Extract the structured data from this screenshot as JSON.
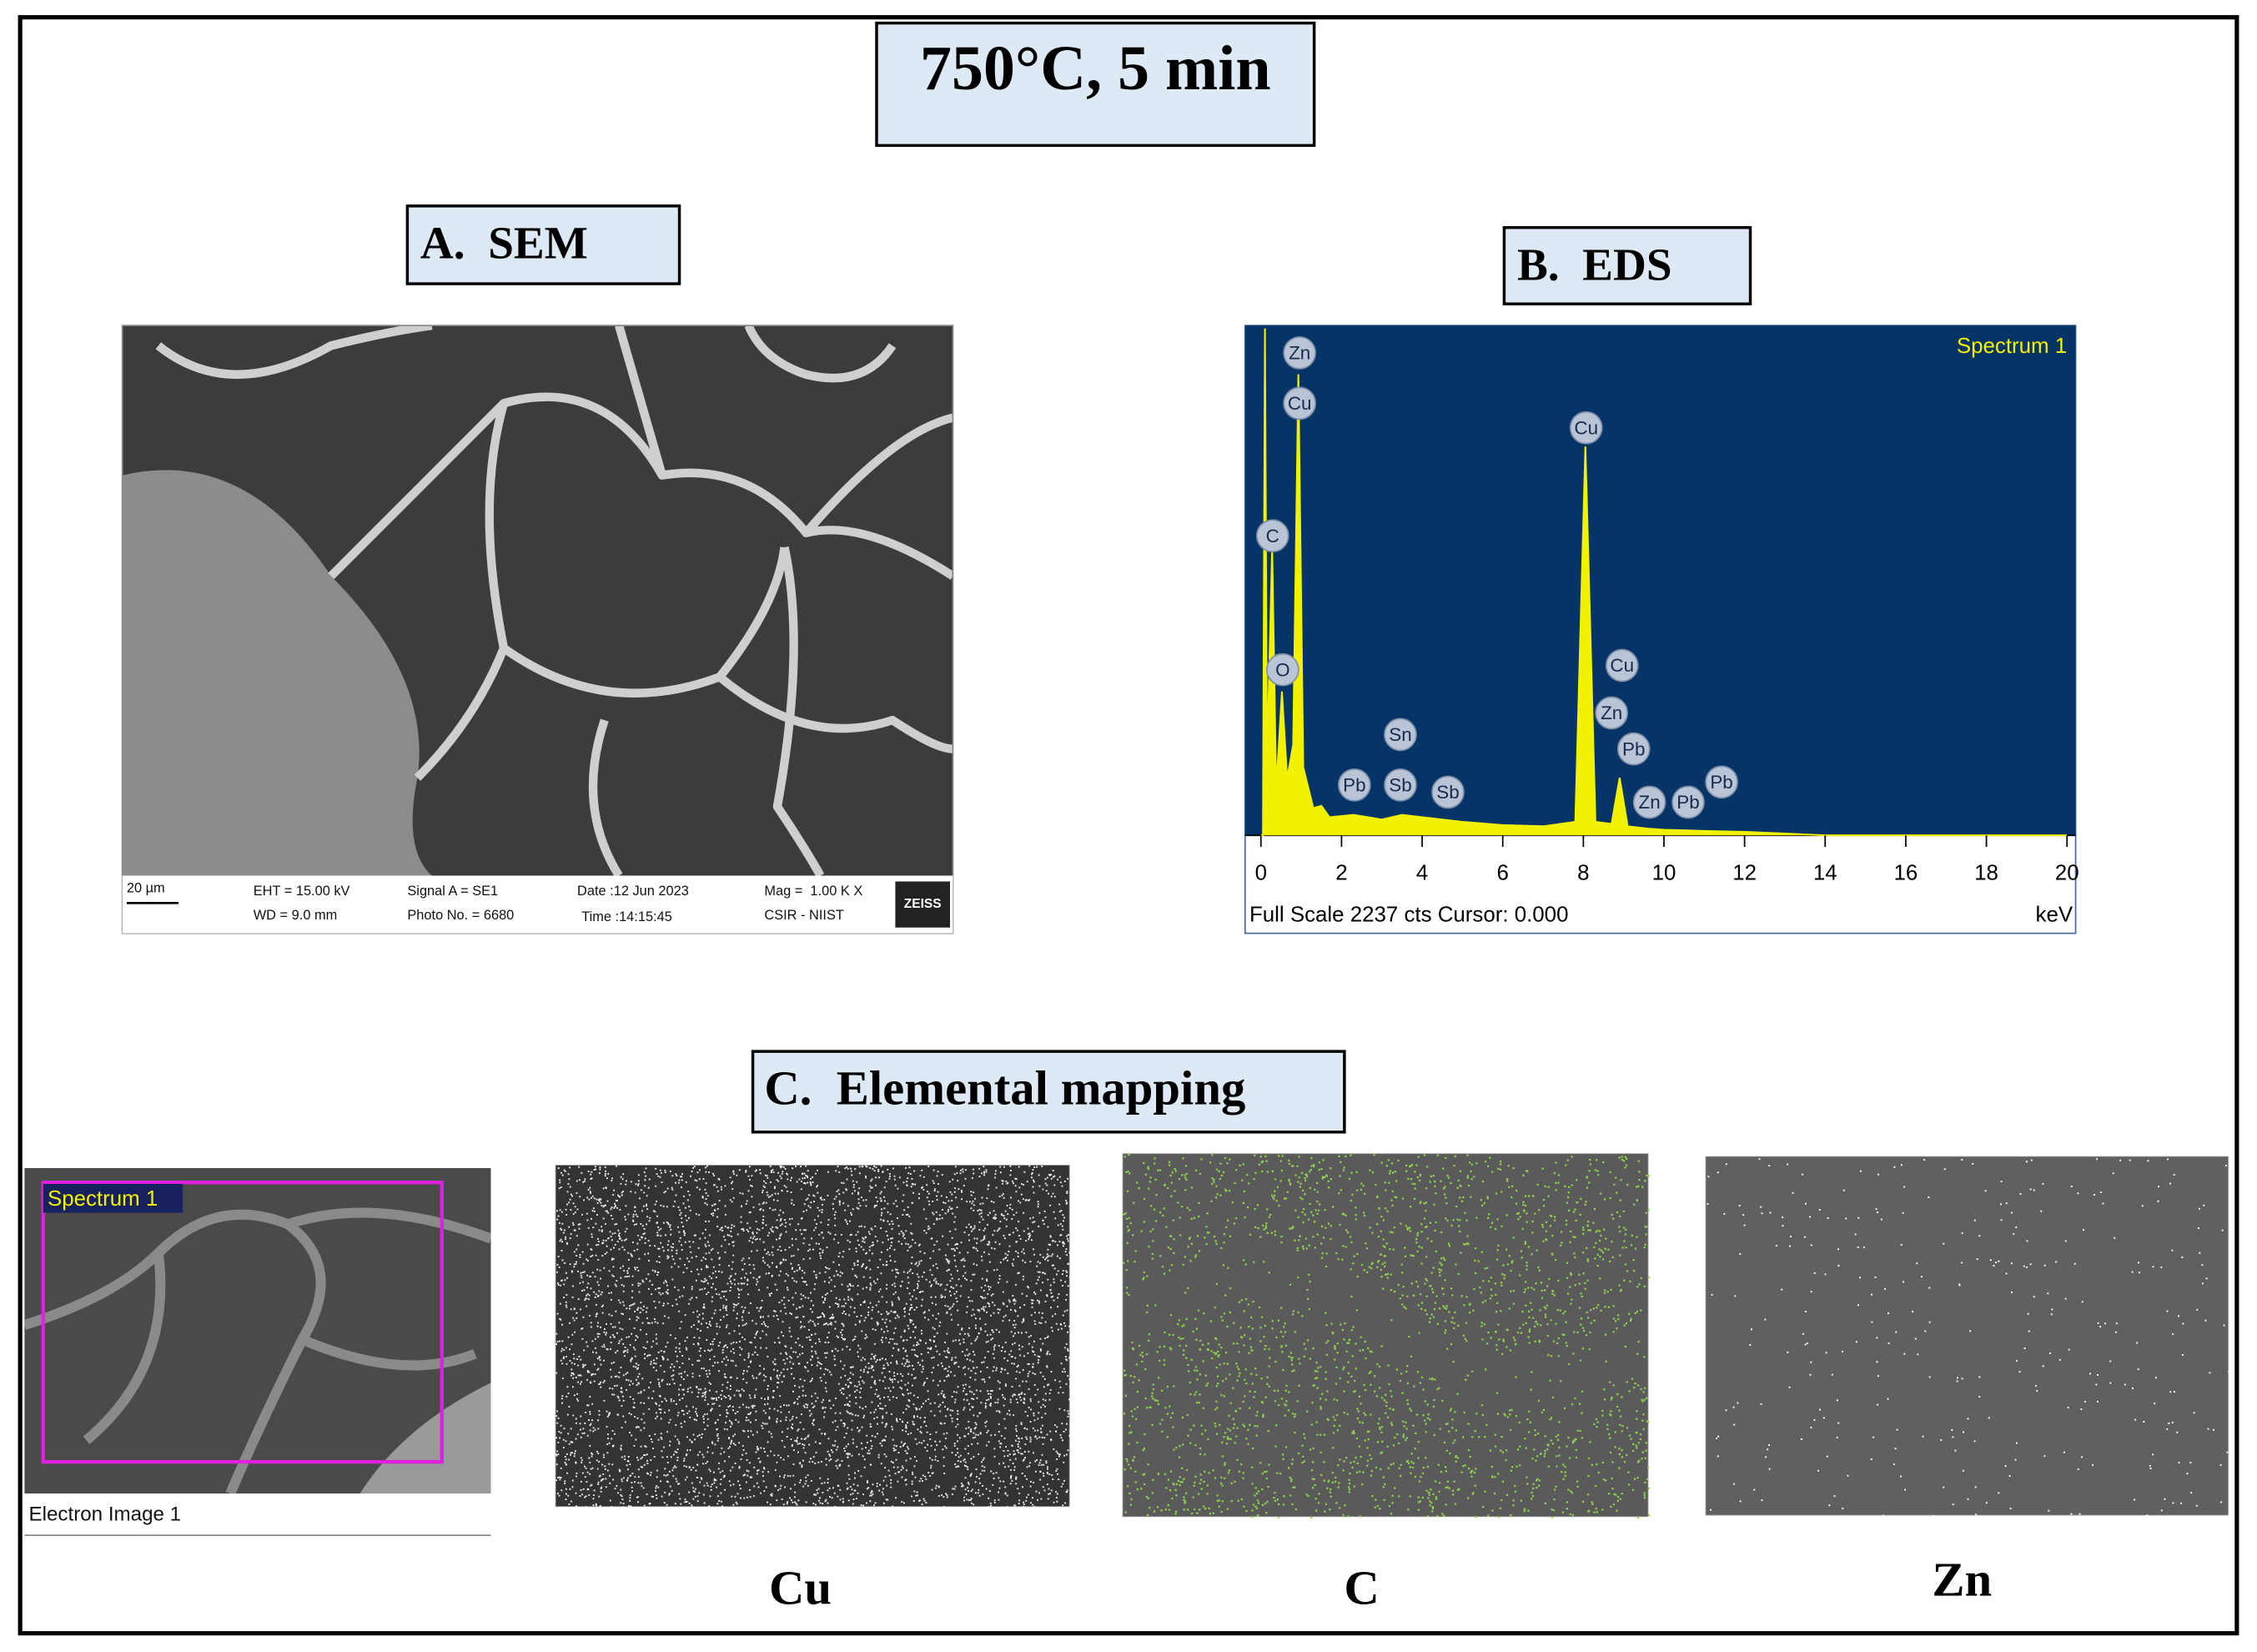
{
  "title": "750°C, 5 min",
  "sem": {
    "label": "A.  SEM",
    "scale_bar": "20 µm",
    "info": [
      "EHT = 15.00 kV",
      "WD = 9.0 mm",
      "Signal A = SE1",
      "Photo No. = 6680",
      "Date :12 Jun 2023",
      "Time :14:15:45",
      "Mag =  1.00 K X",
      "CSIR - NIIST",
      "ZEISS"
    ]
  },
  "eds": {
    "label": "B.  EDS",
    "spectrum_name": "Spectrum 1",
    "status": "Full Scale 2237 cts Cursor: 0.000",
    "x_unit": "keV",
    "xlim": [
      0,
      20
    ],
    "xticks": [
      0,
      2,
      4,
      6,
      8,
      10,
      12,
      14,
      16,
      18,
      20
    ],
    "ylim": [
      0,
      2237
    ],
    "color": "#f2f200",
    "spectrum": {
      "x": [
        0,
        0.05,
        0.1,
        0.15,
        0.28,
        0.38,
        0.52,
        0.65,
        0.8,
        0.93,
        1.05,
        1.3,
        1.5,
        1.7,
        2.3,
        3,
        3.5,
        5,
        6,
        7,
        7.8,
        8.05,
        8.3,
        8.7,
        8.9,
        9.1,
        9.6,
        10,
        11,
        12,
        13,
        14,
        20
      ],
      "y": [
        0,
        0,
        2237,
        300,
        1270,
        200,
        635,
        250,
        400,
        2034,
        300,
        120,
        130,
        80,
        90,
        70,
        90,
        60,
        45,
        40,
        60,
        1716,
        60,
        50,
        254,
        40,
        30,
        25,
        20,
        15,
        8,
        0,
        0
      ]
    },
    "peak_labels": [
      {
        "label": "Zn",
        "x": 0.96
      },
      {
        "label": "Cu",
        "x": 0.96
      },
      {
        "label": "C",
        "x": 0.29
      },
      {
        "label": "O",
        "x": 0.54
      },
      {
        "label": "Pb",
        "x": 2.32
      },
      {
        "label": "Sn",
        "x": 3.46
      },
      {
        "label": "Sb",
        "x": 3.46
      },
      {
        "label": "Sb",
        "x": 4.64
      },
      {
        "label": "Cu",
        "x": 8.07
      },
      {
        "label": "Cu",
        "x": 8.96
      },
      {
        "label": "Zn",
        "x": 8.7
      },
      {
        "label": "Pb",
        "x": 9.25
      },
      {
        "label": "Zn",
        "x": 9.64
      },
      {
        "label": "Pb",
        "x": 10.6
      },
      {
        "label": "Pb",
        "x": 11.43
      }
    ]
  },
  "mapping": {
    "label": "C.  Elemental mapping",
    "electron_image": {
      "caption": "Electron Image 1",
      "spectrum_name": "Spectrum 1"
    },
    "maps": [
      {
        "element": "Cu",
        "color": "#ffffff"
      },
      {
        "element": "C",
        "color": "#8fd14f"
      },
      {
        "element": "Zn",
        "color": "#ffffff"
      }
    ]
  }
}
